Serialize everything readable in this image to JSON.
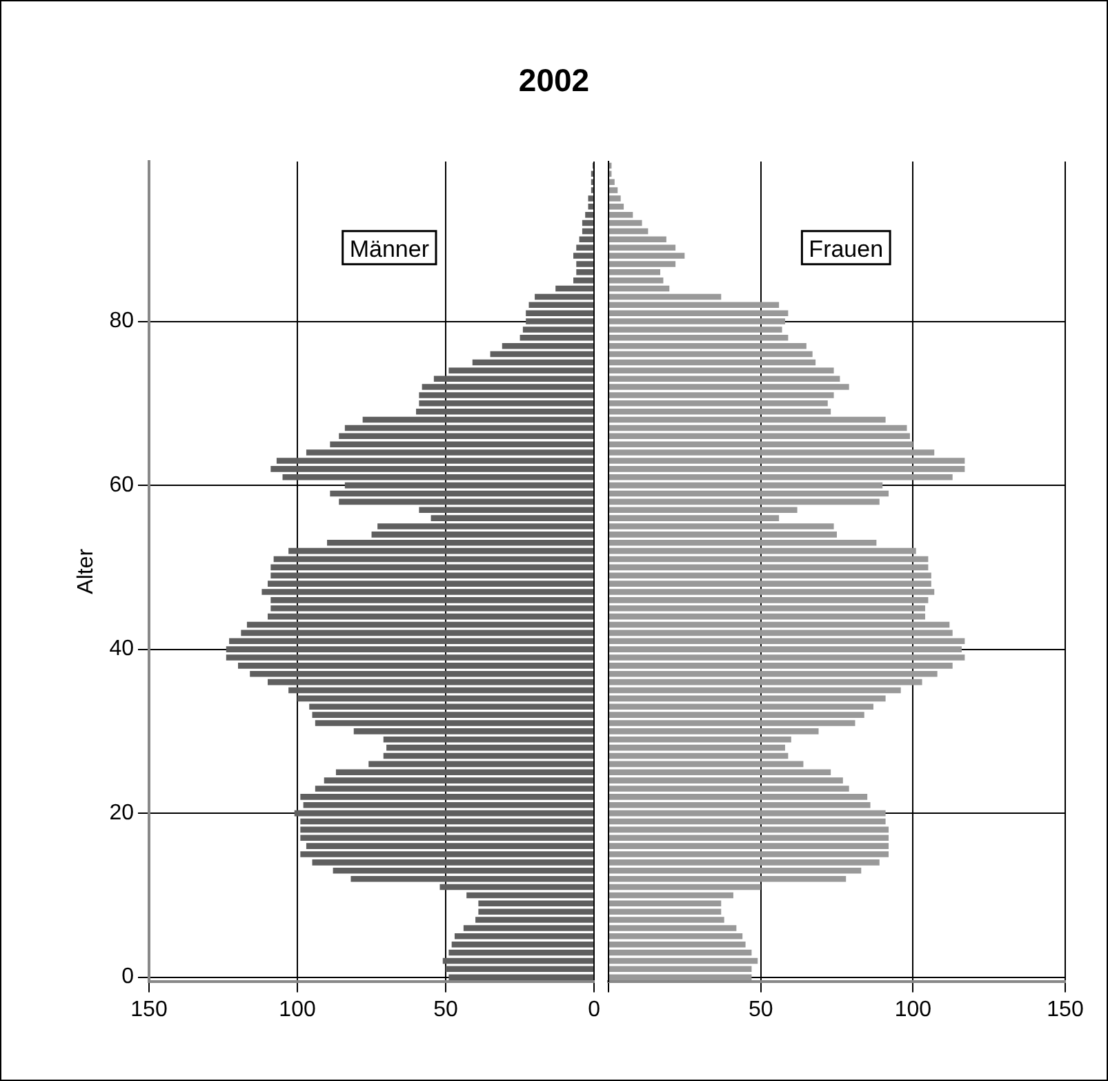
{
  "chart_data": [
    {
      "type": "bar",
      "orientation": "horizontal",
      "title": "2002",
      "ylabel": "Alter",
      "categories": [
        null,
        null,
        null,
        null,
        null,
        null,
        null,
        null,
        null,
        null,
        null,
        null,
        null,
        null,
        null,
        null,
        null,
        null,
        null,
        "80",
        null,
        null,
        null,
        null,
        null,
        null,
        null,
        null,
        null,
        null,
        null,
        null,
        null,
        null,
        null,
        null,
        null,
        null,
        null,
        "60",
        null,
        null,
        null,
        null,
        null,
        null,
        null,
        null,
        null,
        null,
        null,
        null,
        null,
        null,
        null,
        null,
        null,
        null,
        null,
        "40",
        null,
        null,
        null,
        null,
        null,
        null,
        null,
        null,
        null,
        null,
        null,
        null,
        null,
        null,
        null,
        null,
        null,
        null,
        null,
        "20",
        null,
        null,
        null,
        null,
        null,
        null,
        null,
        null,
        null,
        null,
        null,
        null,
        null,
        null,
        null,
        null,
        null,
        null,
        null,
        "0"
      ],
      "series": [
        {
          "name": "Männer",
          "color": "#5f5f5f",
          "values": [
            0.5,
            1,
            1,
            1,
            2,
            2,
            3,
            4,
            4,
            5,
            6,
            7,
            6,
            6,
            7,
            13,
            20,
            22,
            23,
            23,
            24,
            25,
            31,
            35,
            41,
            49,
            54,
            58,
            59,
            59,
            60,
            78,
            84,
            86,
            89,
            97,
            107,
            109,
            105,
            84,
            89,
            86,
            59,
            55,
            73,
            75,
            90,
            103,
            108,
            109,
            109,
            110,
            112,
            109,
            109,
            110,
            117,
            119,
            123,
            124,
            124,
            120,
            116,
            110,
            103,
            100,
            96,
            95,
            94,
            81,
            71,
            70,
            71,
            76,
            87,
            91,
            94,
            99,
            98,
            101,
            99,
            99,
            99,
            97,
            99,
            95,
            88,
            82,
            52,
            43,
            39,
            39,
            40,
            44,
            47,
            48,
            49,
            51,
            50,
            49
          ]
        }
      ],
      "xlim": [
        150,
        0
      ],
      "xticks": [
        150,
        100,
        50,
        0
      ],
      "grid": true,
      "legend": false
    },
    {
      "type": "bar",
      "orientation": "horizontal",
      "tick_labels": "x",
      "categories": [
        null,
        null,
        null,
        null,
        null,
        null,
        null,
        null,
        null,
        null,
        null,
        null,
        null,
        null,
        null,
        null,
        null,
        null,
        null,
        "80",
        null,
        null,
        null,
        null,
        null,
        null,
        null,
        null,
        null,
        null,
        null,
        null,
        null,
        null,
        null,
        null,
        null,
        null,
        null,
        "60",
        null,
        null,
        null,
        null,
        null,
        null,
        null,
        null,
        null,
        null,
        null,
        null,
        null,
        null,
        null,
        null,
        null,
        null,
        null,
        "40",
        null,
        null,
        null,
        null,
        null,
        null,
        null,
        null,
        null,
        null,
        null,
        null,
        null,
        null,
        null,
        null,
        null,
        null,
        null,
        "20",
        null,
        null,
        null,
        null,
        null,
        null,
        null,
        null,
        null,
        null,
        null,
        null,
        null,
        null,
        null,
        null,
        null,
        null,
        null,
        "0"
      ],
      "series": [
        {
          "name": "Frauen",
          "color": "#999999",
          "values": [
            1,
            1,
            2,
            3,
            4,
            5,
            8,
            11,
            13,
            19,
            22,
            25,
            22,
            17,
            18,
            20,
            37,
            56,
            59,
            58,
            57,
            59,
            65,
            67,
            68,
            74,
            76,
            79,
            74,
            72,
            73,
            91,
            98,
            99,
            100,
            107,
            117,
            117,
            113,
            90,
            92,
            89,
            62,
            56,
            74,
            75,
            88,
            101,
            105,
            105,
            106,
            106,
            107,
            105,
            104,
            104,
            112,
            113,
            117,
            116,
            117,
            113,
            108,
            103,
            96,
            91,
            87,
            84,
            81,
            69,
            60,
            58,
            59,
            64,
            73,
            77,
            79,
            85,
            86,
            91,
            91,
            92,
            92,
            92,
            92,
            89,
            83,
            78,
            50,
            41,
            37,
            37,
            38,
            42,
            44,
            45,
            47,
            49,
            47,
            47
          ]
        }
      ],
      "xlim": [
        0,
        150
      ],
      "xticks": [
        {
          "value": 0,
          "label": null
        },
        50,
        100,
        150
      ],
      "grid": true,
      "legend": false
    }
  ]
}
